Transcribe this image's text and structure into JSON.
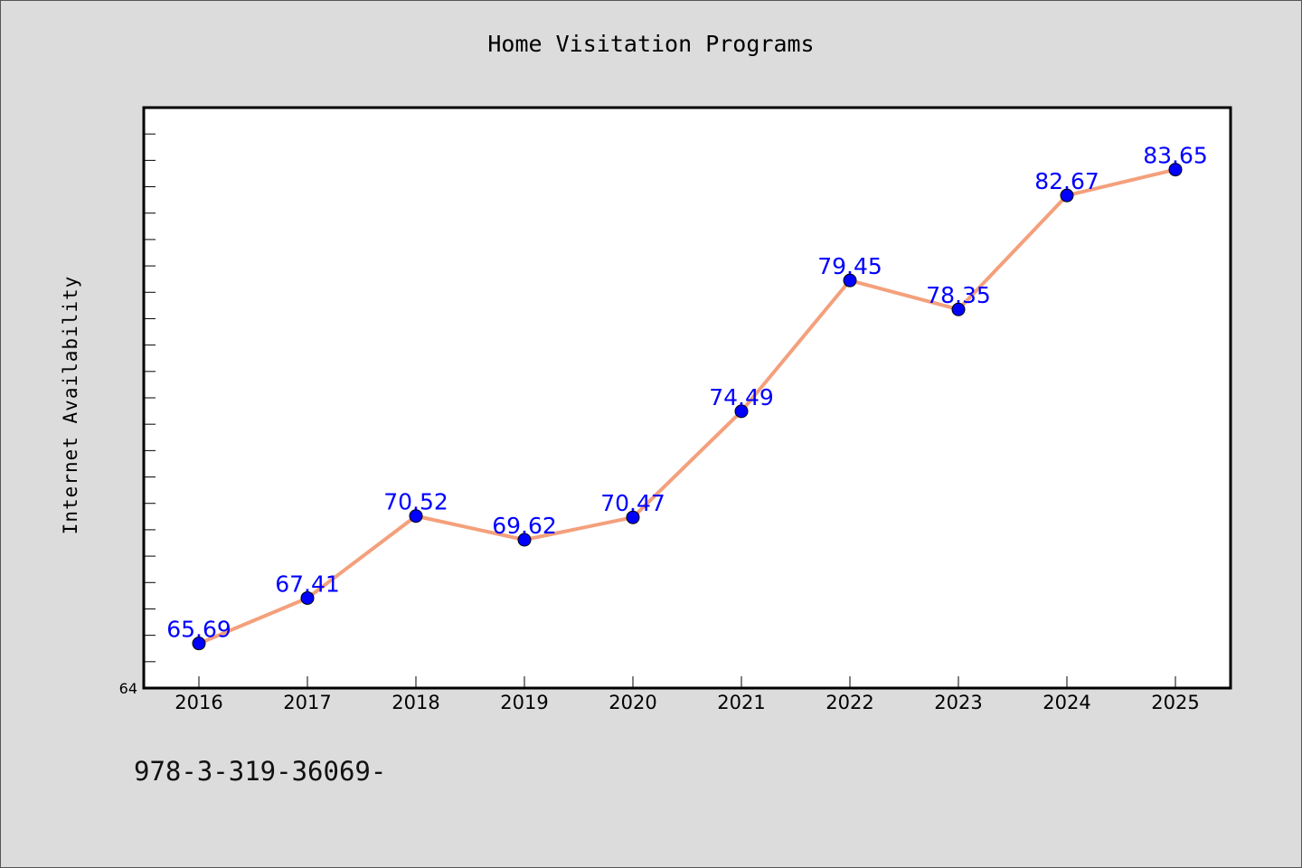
{
  "chart_data": {
    "type": "line",
    "title": "Home Visitation Programs",
    "xlabel": "",
    "ylabel": "Internet Availability",
    "x": [
      "2016",
      "2017",
      "2018",
      "2019",
      "2020",
      "2021",
      "2022",
      "2023",
      "2024",
      "2025"
    ],
    "series": [
      {
        "values": [
          65.69,
          67.41,
          70.52,
          69.62,
          70.47,
          74.49,
          79.45,
          78.35,
          82.67,
          83.65
        ],
        "data_labels": [
          "65.69",
          "67.41",
          "70.52",
          "69.62",
          "70.47",
          "74.49",
          "79.45",
          "78.35",
          "82.67",
          "83.65"
        ]
      }
    ],
    "ylim": [
      64,
      86
    ],
    "y_tick_labels": [
      "64"
    ],
    "grid": false,
    "legend": "none",
    "colors": {
      "line": "#f4a07c",
      "marker": "#0000ff",
      "data_label": "#0000ff",
      "background": "#dcdcdc",
      "plot_background": "#ffffff"
    }
  },
  "footnote": "978-3-319-36069-"
}
